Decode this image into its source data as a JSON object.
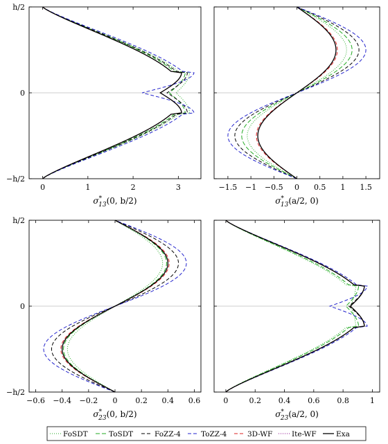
{
  "legend": {
    "items": [
      {
        "label": "FoSDT",
        "color": "#22aa22",
        "dash": "1,2",
        "width": 1
      },
      {
        "label": "ToSDT",
        "color": "#22aa22",
        "dash": "6,3",
        "width": 1
      },
      {
        "label": "FoZZ-4",
        "color": "#000000",
        "dash": "5,3",
        "width": 1
      },
      {
        "label": "ToZZ-4",
        "color": "#2222cc",
        "dash": "5,3",
        "width": 1
      },
      {
        "label": "3D-WF",
        "color": "#dd2222",
        "dash": "5,3",
        "width": 1
      },
      {
        "label": "Ite-WF",
        "color": "#880088",
        "dash": "1,2",
        "width": 1
      },
      {
        "label": "Exa",
        "color": "#000000",
        "dash": "",
        "width": 1.3
      }
    ]
  },
  "chart_data": [
    {
      "type": "line",
      "xlabel": "σ*13(0, b/2)",
      "xlabel_parts": {
        "sym": "σ",
        "sup": "*",
        "sub": "13",
        "arg": "(0, b/2)"
      },
      "xlim": [
        -0.3,
        3.5
      ],
      "xticks": [
        0,
        1,
        2,
        3
      ],
      "xtick_labels": [
        "0",
        "1",
        "2",
        "3"
      ],
      "ylim": [
        -0.5,
        0.5
      ],
      "yticks": [
        -0.5,
        0,
        0.5
      ],
      "ytick_labels": [
        "−h/2",
        "0",
        "h/2"
      ],
      "reference_line": 0,
      "profile": "two_lobe",
      "series": [
        {
          "name": "FoSDT",
          "peak": 3.3,
          "mid": 2.95
        },
        {
          "name": "ToSDT",
          "peak": 3.2,
          "mid": 2.8
        },
        {
          "name": "FoZZ-4",
          "peak": 3.25,
          "mid": 2.75
        },
        {
          "name": "ToZZ-4",
          "peak": 3.4,
          "mid": 2.2
        },
        {
          "name": "3D-WF",
          "peak": 3.12,
          "mid": 2.6
        },
        {
          "name": "Ite-WF",
          "peak": 3.12,
          "mid": 2.6
        },
        {
          "name": "Exa",
          "peak": 3.12,
          "mid": 2.6
        }
      ]
    },
    {
      "type": "line",
      "xlabel": "σ*13(a/2, 0)",
      "xlabel_parts": {
        "sym": "σ",
        "sup": "*",
        "sub": "13",
        "arg": "(a/2, 0)"
      },
      "xlim": [
        -1.8,
        1.8
      ],
      "xticks": [
        -1.5,
        -1,
        -0.5,
        0,
        0.5,
        1,
        1.5
      ],
      "xtick_labels": [
        "−1.5",
        "−1",
        "−0.5",
        "0",
        "0.5",
        "1",
        "1.5"
      ],
      "ylim": [
        -0.5,
        0.5
      ],
      "yticks": [
        -0.5,
        0,
        0.5
      ],
      "ytick_labels": [
        "",
        "",
        ""
      ],
      "reference_line": 0,
      "profile": "s_curve",
      "series": [
        {
          "name": "FoSDT",
          "peak": 1.08
        },
        {
          "name": "ToSDT",
          "peak": 1.2
        },
        {
          "name": "FoZZ-4",
          "peak": 1.35
        },
        {
          "name": "ToZZ-4",
          "peak": 1.5
        },
        {
          "name": "3D-WF",
          "peak": 0.88
        },
        {
          "name": "Ite-WF",
          "peak": 0.85
        },
        {
          "name": "Exa",
          "peak": 0.85
        }
      ]
    },
    {
      "type": "line",
      "xlabel": "σ*23(0, b/2)",
      "xlabel_parts": {
        "sym": "σ",
        "sup": "*",
        "sub": "23",
        "arg": "(0, b/2)"
      },
      "xlim": [
        -0.65,
        0.65
      ],
      "xticks": [
        -0.6,
        -0.4,
        -0.2,
        0,
        0.2,
        0.4,
        0.6
      ],
      "xtick_labels": [
        "−0.6",
        "−0.4",
        "−0.2",
        "0",
        "0.2",
        "0.4",
        "0.6"
      ],
      "ylim": [
        -0.5,
        0.5
      ],
      "yticks": [
        -0.5,
        0,
        0.5
      ],
      "ytick_labels": [
        "−h/2",
        "0",
        "h/2"
      ],
      "reference_line": 0,
      "profile": "s_curve",
      "series": [
        {
          "name": "FoSDT",
          "peak": 0.36
        },
        {
          "name": "ToSDT",
          "peak": 0.39
        },
        {
          "name": "FoZZ-4",
          "peak": 0.48
        },
        {
          "name": "ToZZ-4",
          "peak": 0.54
        },
        {
          "name": "3D-WF",
          "peak": 0.41
        },
        {
          "name": "Ite-WF",
          "peak": 0.4
        },
        {
          "name": "Exa",
          "peak": 0.4
        }
      ]
    },
    {
      "type": "line",
      "xlabel": "σ*23(a/2, 0)",
      "xlabel_parts": {
        "sym": "σ",
        "sup": "*",
        "sub": "23",
        "arg": "(a/2, 0)"
      },
      "xlim": [
        -0.08,
        1.05
      ],
      "xticks": [
        0,
        0.2,
        0.4,
        0.6,
        0.8,
        1
      ],
      "xtick_labels": [
        "0",
        "0.2",
        "0.4",
        "0.6",
        "0.8",
        "1"
      ],
      "ylim": [
        -0.5,
        0.5
      ],
      "yticks": [
        -0.5,
        0,
        0.5
      ],
      "ytick_labels": [
        "",
        "",
        ""
      ],
      "reference_line": 0,
      "profile": "two_lobe",
      "series": [
        {
          "name": "FoSDT",
          "peak": 0.9,
          "mid": 0.85
        },
        {
          "name": "ToSDT",
          "peak": 0.92,
          "mid": 0.82
        },
        {
          "name": "FoZZ-4",
          "peak": 0.96,
          "mid": 0.84
        },
        {
          "name": "ToZZ-4",
          "peak": 0.98,
          "mid": 0.71
        },
        {
          "name": "3D-WF",
          "peak": 0.96,
          "mid": 0.85
        },
        {
          "name": "Ite-WF",
          "peak": 0.96,
          "mid": 0.85
        },
        {
          "name": "Exa",
          "peak": 0.96,
          "mid": 0.85
        }
      ]
    }
  ]
}
